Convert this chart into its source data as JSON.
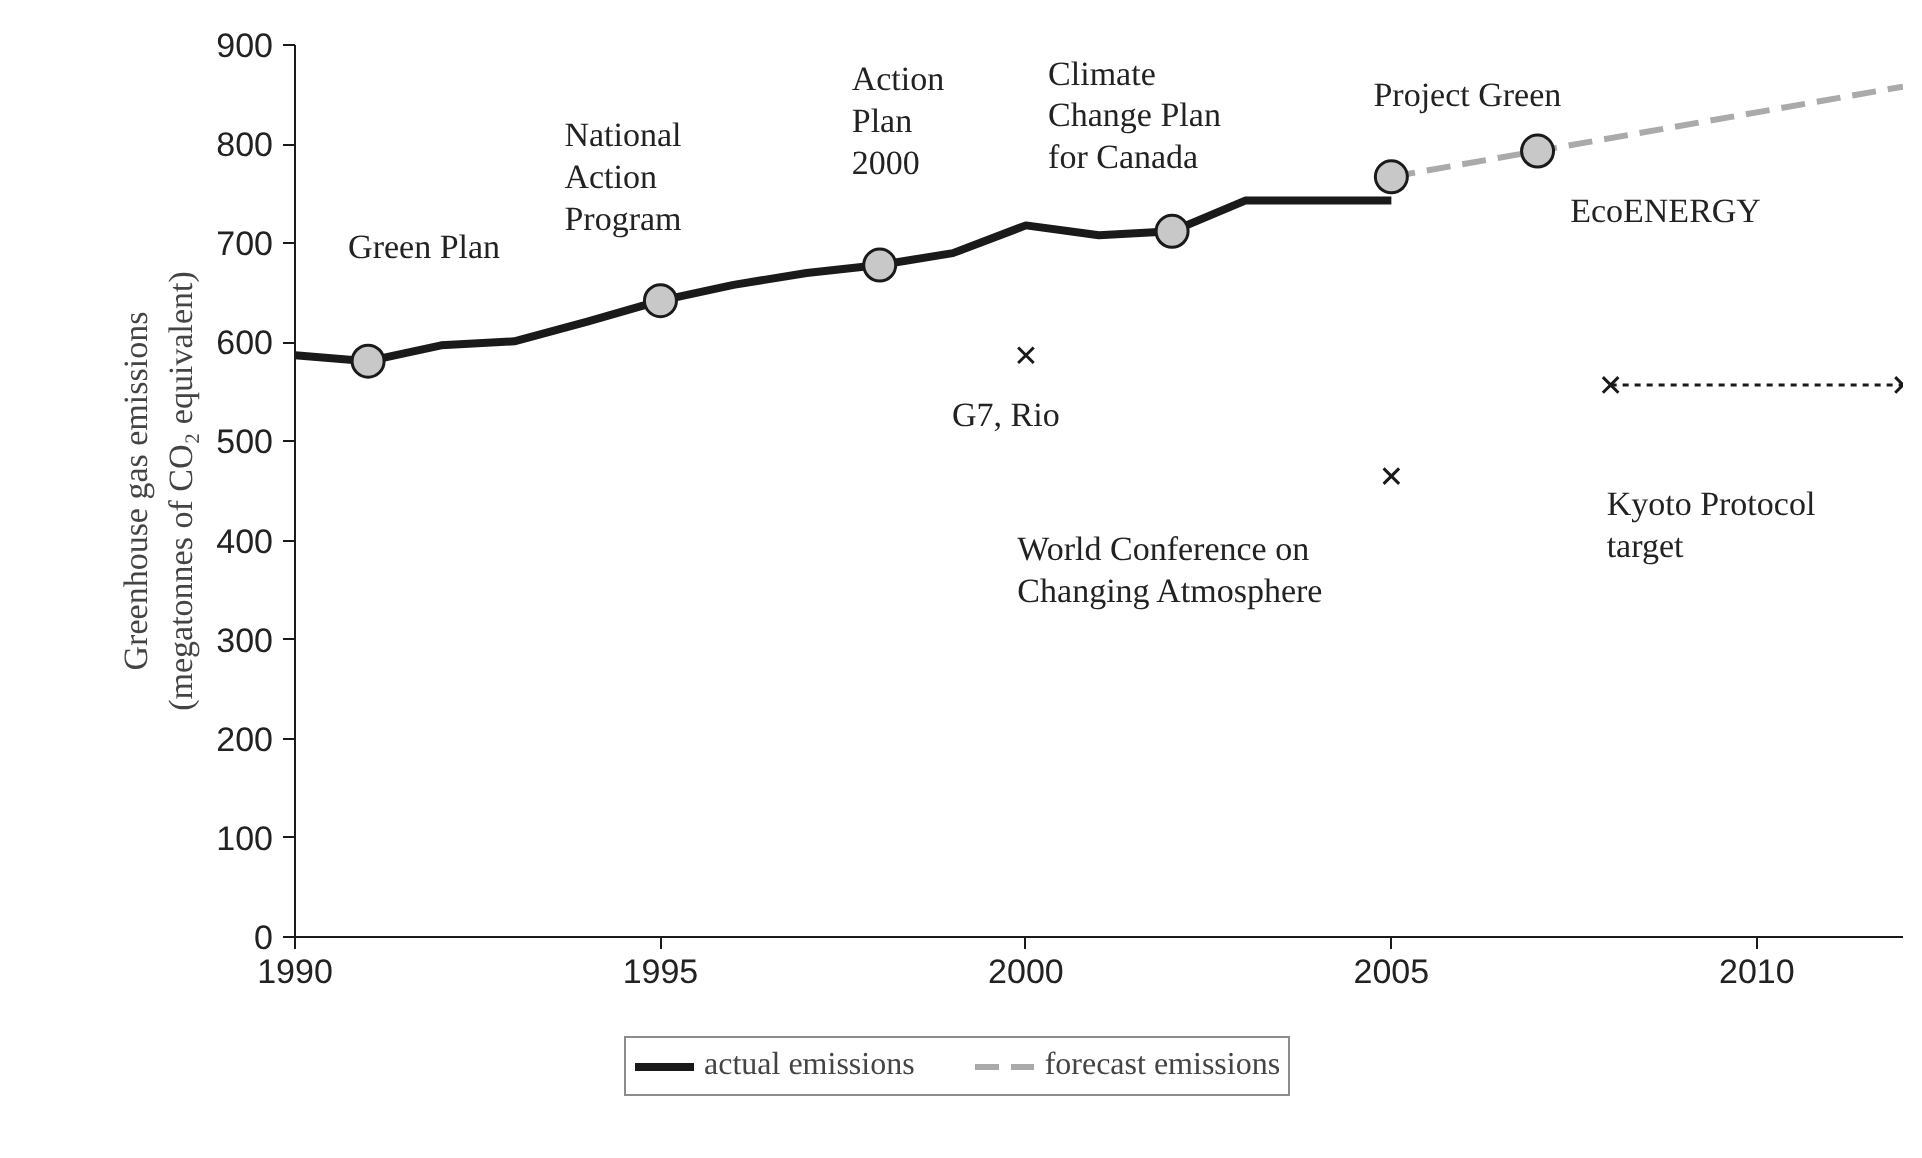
{
  "chart_data": {
    "type": "line",
    "ylabel": "Greenhouse gas emissions\n(megatonnes of CO₂ equivalent)",
    "xlim": [
      1990,
      2012
    ],
    "xticks": [
      1990,
      1995,
      2000,
      2005,
      2010
    ],
    "ylim": [
      0,
      900
    ],
    "yticks": [
      0,
      100,
      200,
      300,
      400,
      500,
      600,
      700,
      800,
      900
    ],
    "grid": false,
    "legend": "bottom",
    "series": [
      {
        "name": "actual emissions",
        "color": "#1a1a1a",
        "line_style": "solid",
        "marker": "none",
        "x": [
          1990,
          1991,
          1992,
          1993,
          1994,
          1995,
          1996,
          1997,
          1998,
          1999,
          2000,
          2001,
          2002,
          2003,
          2004,
          2005
        ],
        "values": [
          587,
          581,
          597,
          601,
          621,
          642,
          658,
          670,
          678,
          690,
          718,
          708,
          712,
          743,
          743,
          743
        ]
      },
      {
        "name": "forecast emissions",
        "color": "#aaaaaa",
        "line_style": "dashed",
        "marker": "none",
        "x": [
          2005,
          2007,
          2012
        ],
        "values": [
          767,
          793,
          858
        ]
      },
      {
        "type": "scatter",
        "color": "#c8c8c8",
        "marker": "circle",
        "x": [
          1991,
          1995,
          1998,
          2002,
          2005,
          2007
        ],
        "values": [
          581,
          642,
          678,
          712,
          767,
          793
        ]
      },
      {
        "type": "scatter",
        "color": "#1a1a1a",
        "marker": "cross",
        "x": [
          2000,
          2005
        ],
        "values": [
          587,
          465
        ]
      },
      {
        "color": "#1a1a1a",
        "line_style": "dotted",
        "marker": "cross",
        "x": [
          2008,
          2012
        ],
        "values": [
          557,
          557
        ]
      }
    ],
    "annotations": [
      {
        "text": "Green Plan",
        "x": 1991,
        "y": 581
      },
      {
        "text": "National\nAction\nProgram",
        "x": 1995,
        "y": 642
      },
      {
        "text": "Action\nPlan\n2000",
        "x": 1998,
        "y": 678
      },
      {
        "text": "Climate\nChange Plan\nfor Canada",
        "x": 2002,
        "y": 712
      },
      {
        "text": "Project Green",
        "x": 2005,
        "y": 767
      },
      {
        "text": "EcoENERGY",
        "x": 2007,
        "y": 793
      },
      {
        "text": "G7, Rio",
        "x": 2000,
        "y": 587
      },
      {
        "text": "World Conference on\nChanging Atmosphere",
        "x": 2005,
        "y": 465
      },
      {
        "text": "Kyoto Protocol\ntarget",
        "x": 2008,
        "y": 557
      }
    ]
  }
}
